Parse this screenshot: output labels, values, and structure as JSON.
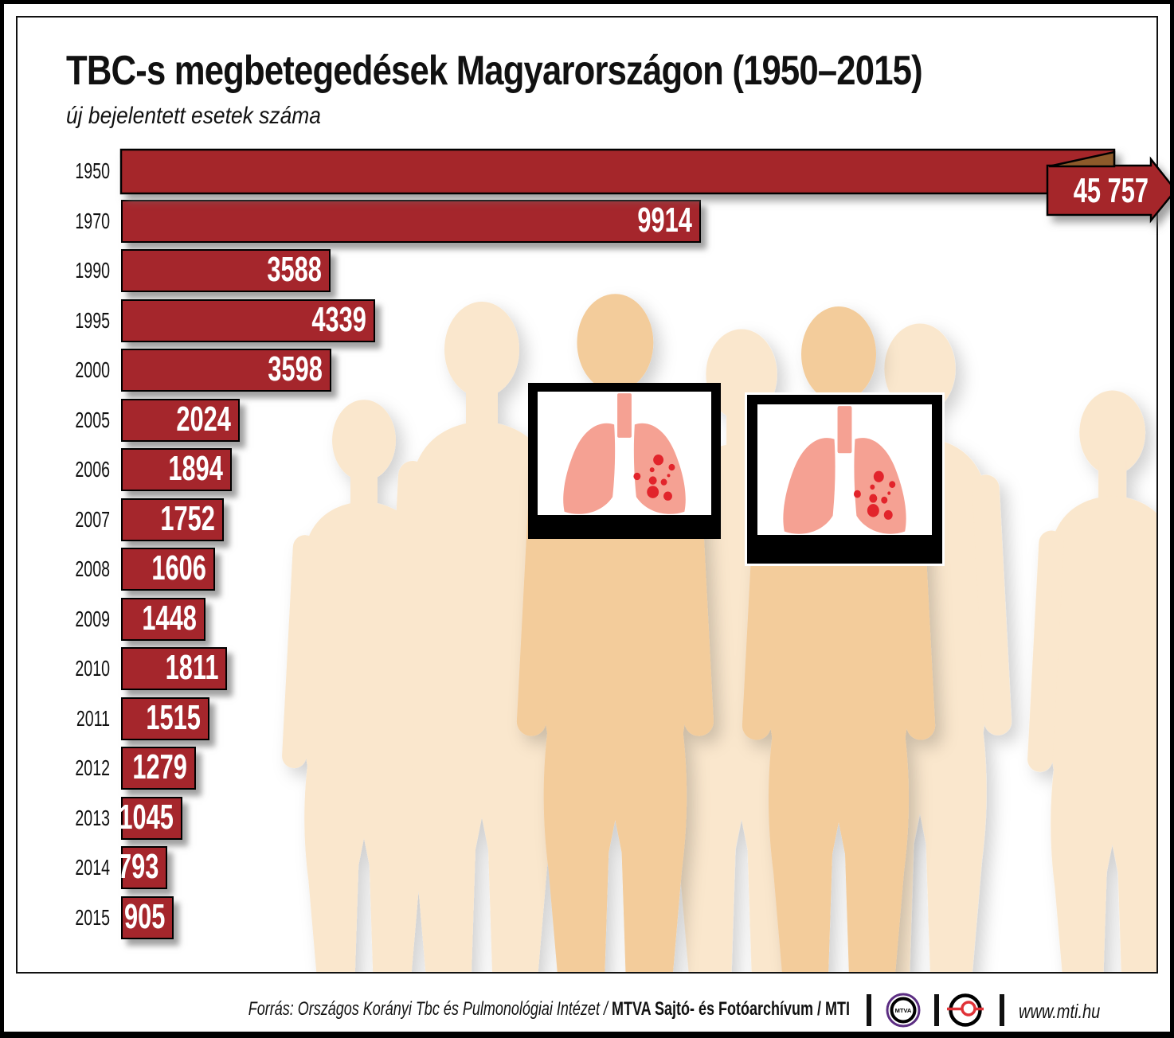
{
  "title": "TBC-s megbetegedések Magyarországon (1950–2015)",
  "subtitle": "új bejelentett esetek száma",
  "chart_data": {
    "type": "bar",
    "orientation": "horizontal",
    "title": "TBC-s megbetegedések Magyarországon (1950–2015)",
    "subtitle": "új bejelentett esetek száma",
    "categories": [
      "1950",
      "1970",
      "1990",
      "1995",
      "2000",
      "2005",
      "2006",
      "2007",
      "2008",
      "2009",
      "2010",
      "2011",
      "2012",
      "2013",
      "2014",
      "2015"
    ],
    "values": [
      45757,
      9914,
      3588,
      4339,
      3598,
      2024,
      1894,
      1752,
      1606,
      1448,
      1811,
      1515,
      1279,
      1045,
      793,
      905
    ],
    "value_labels": [
      "45 757",
      "9914",
      "3588",
      "4339",
      "3598",
      "2024",
      "1894",
      "1752",
      "1606",
      "1448",
      "1811",
      "1515",
      "1279",
      "1045",
      "793",
      "905"
    ],
    "overflow_bar": "1950",
    "bar_color": "#a5262c",
    "bar_border_color": "#000000",
    "fold_color": "#8d5a2b",
    "xlim": [
      0,
      10000
    ],
    "grid": false,
    "legend": false
  },
  "icons": {
    "crowd": "human-silhouettes",
    "lung_card": "lungs-with-tbc-spots",
    "mtva_logo": "mtva-circle-logo",
    "mti_logo": "mti-eye-logo"
  },
  "colors": {
    "bar_red": "#a5262c",
    "fold_brown": "#8d5a2b",
    "silhouette_light": "#fae7cd",
    "silhouette_dark": "#f3cc9b",
    "lung_salmon": "#f5a193",
    "spot_red": "#e2242b",
    "mtva_purple": "#5b2d82",
    "mti_red": "#e03237"
  },
  "footer": {
    "source": "Forrás: Országos Korányi Tbc és Pulmonológiai Intézet",
    "separator": " / ",
    "archive": "MTVA Sajtó- és Fotóarchívum / MTI",
    "mtva_label": "MTVA",
    "website": "www.mti.hu"
  }
}
